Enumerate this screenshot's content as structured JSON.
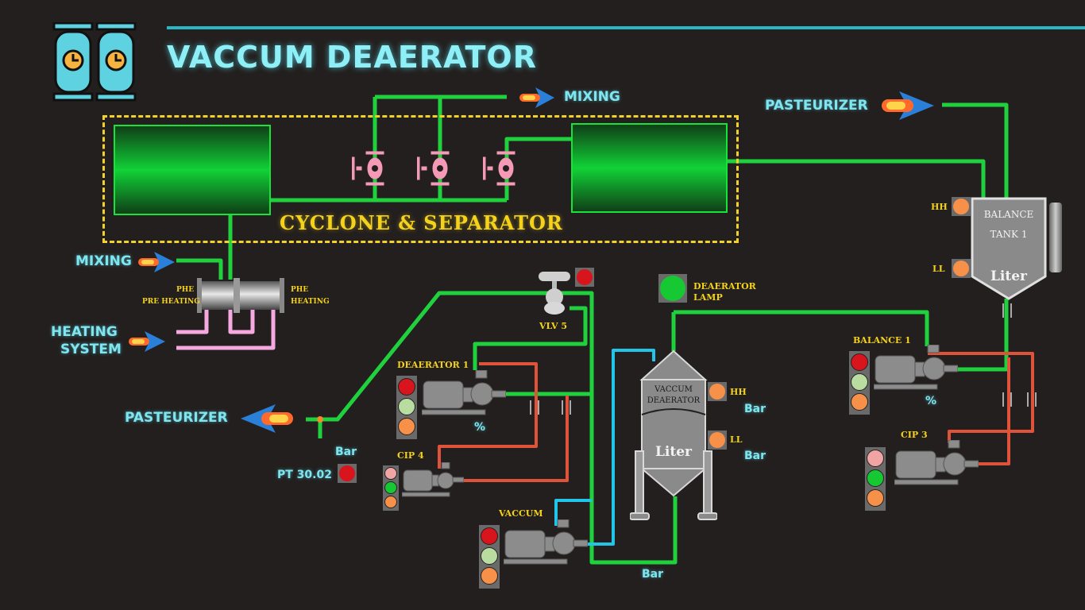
{
  "header": {
    "title": "VACCUM DEAERATOR"
  },
  "cyclone": {
    "label": "CYCLONE & SEPARATOR"
  },
  "flows": {
    "mixing_top": "MIXING",
    "pasteurizer_top": "PASTEURIZER",
    "mixing_left": "MIXING",
    "heating_line1": "HEATING",
    "heating_line2": "SYSTEM",
    "pasteurizer_left": "PASTEURIZER"
  },
  "phe": {
    "left_line1": "PHE",
    "left_line2": "PRE HEATING",
    "right_line1": "PHE",
    "right_line2": "HEATING"
  },
  "valve": {
    "label": "VLV 5"
  },
  "lamp": {
    "line1": "DEAERATOR",
    "line2": "LAMP"
  },
  "balance_tank": {
    "line1": "BALANCE",
    "line2": "TANK 1",
    "level": "Liter",
    "hh": "HH",
    "ll": "LL"
  },
  "deaerator": {
    "line1": "VACCUM",
    "line2": "DEAERATOR",
    "level": "Liter",
    "hh": "HH",
    "ll": "LL",
    "unit_hh": "Bar",
    "unit_ll": "Bar",
    "unit_bottom": "Bar"
  },
  "pumps": {
    "deaerator1": {
      "label": "DEAERATOR 1",
      "unit": "%"
    },
    "cip4": {
      "label": "CIP 4"
    },
    "vaccum": {
      "label": "VACCUM"
    },
    "balance1": {
      "label": "BALANCE 1",
      "unit": "%"
    },
    "cip3": {
      "label": "CIP 3"
    }
  },
  "pt": {
    "label": "PT 30.02",
    "unit": "Bar"
  },
  "colors": {
    "pipe_green": "#1fd23d",
    "pipe_red": "#e0533b",
    "pipe_cyan": "#22c5e8",
    "pipe_pink": "#f6a8e0",
    "lamp_red": "#d8141c",
    "lamp_green": "#16c832",
    "lamp_orange": "#f7914a",
    "lamp_lightgreen": "#b9dca0",
    "lamp_pink": "#f0a4a4"
  }
}
